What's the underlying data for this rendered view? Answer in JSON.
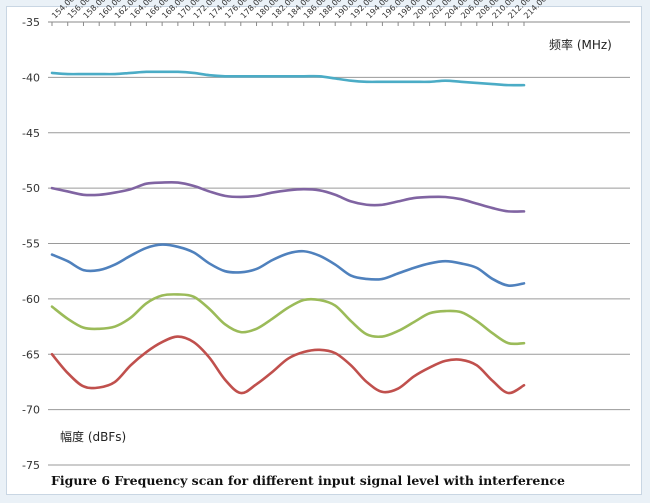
{
  "chart_data": {
    "type": "line",
    "caption": "Figure 6 Frequency scan for different input signal level with interference",
    "xlabel": "频率 (MHz)",
    "ylabel": "幅度 (dBFs)",
    "x_ticks": [
      "154.00",
      "156.00",
      "158.00",
      "160.00",
      "162.00",
      "164.00",
      "166.00",
      "168.00",
      "170.00",
      "172.00",
      "174.00",
      "176.00",
      "178.00",
      "180.00",
      "182.00",
      "184.00",
      "186.00",
      "188.00",
      "190.00",
      "192.00",
      "194.00",
      "196.00",
      "198.00",
      "200.00",
      "202.00",
      "204.00",
      "206.00",
      "208.00",
      "210.00",
      "212.00",
      "214.00"
    ],
    "y_ticks": [
      -35,
      -40,
      -45,
      -50,
      -55,
      -60,
      -65,
      -70,
      -75
    ],
    "ylim": [
      -75,
      -35
    ],
    "x_axis_position": "top",
    "grid": true,
    "x": [
      154,
      156,
      158,
      160,
      162,
      164,
      166,
      168,
      170,
      172,
      174,
      176,
      178,
      180,
      182,
      184,
      186,
      188,
      190,
      192,
      194,
      196,
      198,
      200,
      202,
      204,
      206,
      208,
      210,
      212,
      214
    ],
    "series": [
      {
        "color": "#4bacc6",
        "values": [
          -39.6,
          -39.7,
          -39.7,
          -39.7,
          -39.7,
          -39.6,
          -39.5,
          -39.5,
          -39.5,
          -39.6,
          -39.8,
          -39.9,
          -39.9,
          -39.9,
          -39.9,
          -39.9,
          -39.9,
          -39.9,
          -40.1,
          -40.3,
          -40.4,
          -40.4,
          -40.4,
          -40.4,
          -40.4,
          -40.3,
          -40.4,
          -40.5,
          -40.6,
          -40.7,
          -40.7
        ]
      },
      {
        "color": "#8064a2",
        "values": [
          -50.0,
          -50.3,
          -50.6,
          -50.6,
          -50.4,
          -50.1,
          -49.6,
          -49.5,
          -49.5,
          -49.8,
          -50.3,
          -50.7,
          -50.8,
          -50.7,
          -50.4,
          -50.2,
          -50.1,
          -50.2,
          -50.6,
          -51.2,
          -51.5,
          -51.5,
          -51.2,
          -50.9,
          -50.8,
          -50.8,
          -51.0,
          -51.4,
          -51.8,
          -52.1,
          -52.1
        ]
      },
      {
        "color": "#4f81bd",
        "values": [
          -56.0,
          -56.6,
          -57.4,
          -57.4,
          -56.9,
          -56.1,
          -55.4,
          -55.1,
          -55.3,
          -55.8,
          -56.8,
          -57.5,
          -57.6,
          -57.3,
          -56.5,
          -55.9,
          -55.7,
          -56.1,
          -56.9,
          -57.9,
          -58.2,
          -58.2,
          -57.7,
          -57.2,
          -56.8,
          -56.6,
          -56.8,
          -57.2,
          -58.2,
          -58.8,
          -58.6
        ]
      },
      {
        "color": "#9bbb59",
        "values": [
          -60.7,
          -61.8,
          -62.6,
          -62.7,
          -62.5,
          -61.7,
          -60.4,
          -59.7,
          -59.6,
          -59.8,
          -60.9,
          -62.3,
          -63.0,
          -62.7,
          -61.8,
          -60.8,
          -60.1,
          -60.1,
          -60.6,
          -62.0,
          -63.2,
          -63.4,
          -62.9,
          -62.1,
          -61.3,
          -61.1,
          -61.2,
          -62.0,
          -63.1,
          -64.0,
          -64.0
        ]
      },
      {
        "color": "#c0504d",
        "values": [
          -65.0,
          -66.7,
          -67.9,
          -68.0,
          -67.5,
          -66.0,
          -64.8,
          -63.9,
          -63.4,
          -63.9,
          -65.3,
          -67.3,
          -68.5,
          -67.7,
          -66.6,
          -65.4,
          -64.8,
          -64.6,
          -64.9,
          -66.0,
          -67.5,
          -68.4,
          -68.1,
          -67.0,
          -66.2,
          -65.6,
          -65.5,
          -66.0,
          -67.4,
          -68.5,
          -67.8
        ]
      }
    ]
  }
}
